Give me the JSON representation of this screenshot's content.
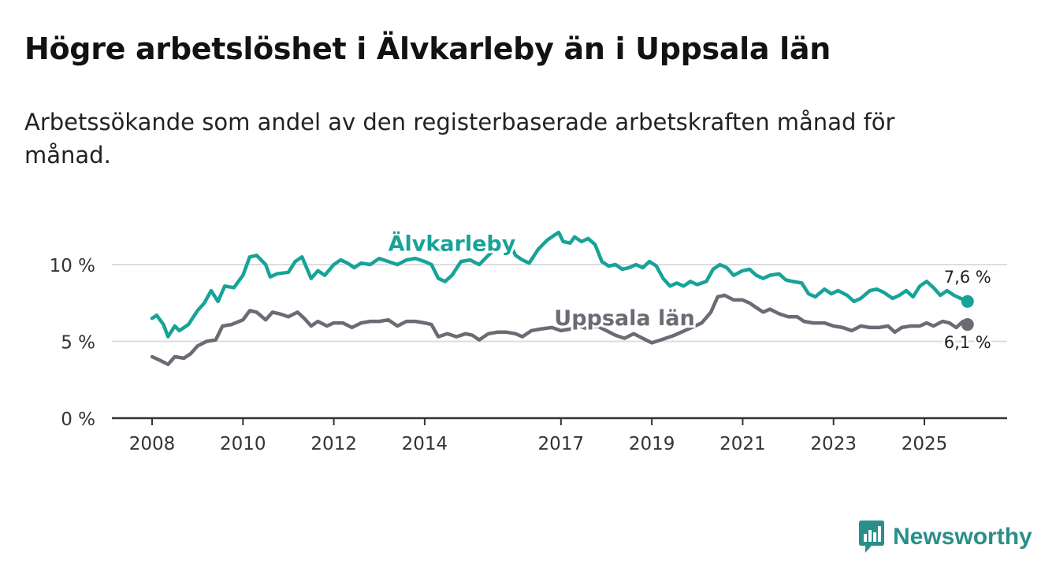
{
  "title": "Högre arbetslöshet i Älvkarleby än i Uppsala län",
  "subtitle": "Arbetssökande som andel av den registerbaserade arbetskraften månad för månad.",
  "brand": {
    "name": "Newsworthy",
    "icon": "bar-chart-logo-icon"
  },
  "colors": {
    "alvkarleby": "#17a398",
    "uppsala": "#6b6b74",
    "axis": "#333333",
    "grid": "#dddddd"
  },
  "chart_data": {
    "type": "line",
    "title": "Högre arbetslöshet i Älvkarleby än i Uppsala län",
    "xlabel": "",
    "ylabel": "",
    "xlim": [
      2008,
      2026.5
    ],
    "ylim": [
      0,
      10
    ],
    "y_ticks": [
      0,
      5,
      10
    ],
    "y_tick_labels": [
      "0 %",
      "5 %",
      "10 %"
    ],
    "x_ticks": [
      2008,
      2010,
      2012,
      2014,
      2017,
      2019,
      2021,
      2023,
      2025
    ],
    "x_tick_labels": [
      "2008",
      "2010",
      "2012",
      "2014",
      "2017",
      "2019",
      "2021",
      "2023",
      "2025"
    ],
    "grid": true,
    "series": [
      {
        "name": "Älvkarleby",
        "label": "Älvkarleby",
        "end_label": "7,6 %",
        "points": [
          [
            2008,
            6.5
          ],
          [
            2008.1,
            6.7
          ],
          [
            2008.25,
            6.1
          ],
          [
            2008.35,
            5.3
          ],
          [
            2008.5,
            6.0
          ],
          [
            2008.6,
            5.7
          ],
          [
            2008.8,
            6.1
          ],
          [
            2009,
            7.0
          ],
          [
            2009.15,
            7.5
          ],
          [
            2009.3,
            8.3
          ],
          [
            2009.45,
            7.6
          ],
          [
            2009.6,
            8.6
          ],
          [
            2009.8,
            8.5
          ],
          [
            2010,
            9.3
          ],
          [
            2010.15,
            10.5
          ],
          [
            2010.3,
            10.6
          ],
          [
            2010.5,
            10.0
          ],
          [
            2010.6,
            9.2
          ],
          [
            2010.75,
            9.4
          ],
          [
            2011,
            9.5
          ],
          [
            2011.15,
            10.2
          ],
          [
            2011.3,
            10.5
          ],
          [
            2011.4,
            9.8
          ],
          [
            2011.5,
            9.1
          ],
          [
            2011.65,
            9.6
          ],
          [
            2011.8,
            9.3
          ],
          [
            2012,
            10.0
          ],
          [
            2012.15,
            10.3
          ],
          [
            2012.3,
            10.1
          ],
          [
            2012.45,
            9.8
          ],
          [
            2012.6,
            10.1
          ],
          [
            2012.8,
            10.0
          ],
          [
            2013,
            10.4
          ],
          [
            2013.2,
            10.2
          ],
          [
            2013.4,
            10.0
          ],
          [
            2013.6,
            10.3
          ],
          [
            2013.8,
            10.4
          ],
          [
            2014,
            10.2
          ],
          [
            2014.15,
            10.0
          ],
          [
            2014.3,
            9.1
          ],
          [
            2014.45,
            8.9
          ],
          [
            2014.6,
            9.3
          ],
          [
            2014.8,
            10.2
          ],
          [
            2015,
            10.3
          ],
          [
            2015.2,
            10.0
          ],
          [
            2015.4,
            10.6
          ],
          [
            2015.55,
            11.0
          ],
          [
            2015.7,
            11.5
          ],
          [
            2015.9,
            11.2
          ],
          [
            2016,
            10.6
          ],
          [
            2016.15,
            10.3
          ],
          [
            2016.3,
            10.1
          ],
          [
            2016.5,
            11.0
          ],
          [
            2016.7,
            11.6
          ],
          [
            2016.85,
            11.9
          ],
          [
            2016.95,
            12.1
          ],
          [
            2017.05,
            11.5
          ],
          [
            2017.2,
            11.4
          ],
          [
            2017.3,
            11.8
          ],
          [
            2017.45,
            11.5
          ],
          [
            2017.6,
            11.7
          ],
          [
            2017.75,
            11.3
          ],
          [
            2017.9,
            10.2
          ],
          [
            2018.05,
            9.9
          ],
          [
            2018.2,
            10.0
          ],
          [
            2018.35,
            9.7
          ],
          [
            2018.5,
            9.8
          ],
          [
            2018.65,
            10.0
          ],
          [
            2018.8,
            9.8
          ],
          [
            2018.95,
            10.2
          ],
          [
            2019.1,
            9.9
          ],
          [
            2019.25,
            9.1
          ],
          [
            2019.4,
            8.6
          ],
          [
            2019.55,
            8.8
          ],
          [
            2019.7,
            8.6
          ],
          [
            2019.85,
            8.9
          ],
          [
            2020,
            8.7
          ],
          [
            2020.2,
            8.9
          ],
          [
            2020.35,
            9.7
          ],
          [
            2020.5,
            10.0
          ],
          [
            2020.65,
            9.8
          ],
          [
            2020.8,
            9.3
          ],
          [
            2021,
            9.6
          ],
          [
            2021.15,
            9.7
          ],
          [
            2021.3,
            9.3
          ],
          [
            2021.45,
            9.1
          ],
          [
            2021.6,
            9.3
          ],
          [
            2021.8,
            9.4
          ],
          [
            2021.95,
            9.0
          ],
          [
            2022.1,
            8.9
          ],
          [
            2022.3,
            8.8
          ],
          [
            2022.45,
            8.1
          ],
          [
            2022.6,
            7.9
          ],
          [
            2022.8,
            8.4
          ],
          [
            2022.95,
            8.1
          ],
          [
            2023.1,
            8.3
          ],
          [
            2023.3,
            8.0
          ],
          [
            2023.45,
            7.6
          ],
          [
            2023.6,
            7.8
          ],
          [
            2023.8,
            8.3
          ],
          [
            2023.95,
            8.4
          ],
          [
            2024.1,
            8.2
          ],
          [
            2024.3,
            7.8
          ],
          [
            2024.45,
            8.0
          ],
          [
            2024.6,
            8.3
          ],
          [
            2024.75,
            7.9
          ],
          [
            2024.9,
            8.6
          ],
          [
            2025.05,
            8.9
          ],
          [
            2025.2,
            8.5
          ],
          [
            2025.35,
            8.0
          ],
          [
            2025.5,
            8.3
          ],
          [
            2025.65,
            8.0
          ],
          [
            2025.8,
            7.8
          ],
          [
            2025.95,
            7.6
          ]
        ]
      },
      {
        "name": "Uppsala län",
        "label": "Uppsala län",
        "end_label": "6,1 %",
        "points": [
          [
            2008,
            4.0
          ],
          [
            2008.15,
            3.8
          ],
          [
            2008.35,
            3.5
          ],
          [
            2008.5,
            4.0
          ],
          [
            2008.7,
            3.9
          ],
          [
            2008.85,
            4.2
          ],
          [
            2009,
            4.7
          ],
          [
            2009.2,
            5.0
          ],
          [
            2009.4,
            5.1
          ],
          [
            2009.55,
            6.0
          ],
          [
            2009.75,
            6.1
          ],
          [
            2010,
            6.4
          ],
          [
            2010.15,
            7.0
          ],
          [
            2010.3,
            6.9
          ],
          [
            2010.5,
            6.4
          ],
          [
            2010.65,
            6.9
          ],
          [
            2010.8,
            6.8
          ],
          [
            2011,
            6.6
          ],
          [
            2011.2,
            6.9
          ],
          [
            2011.35,
            6.5
          ],
          [
            2011.5,
            6.0
          ],
          [
            2011.65,
            6.3
          ],
          [
            2011.85,
            6.0
          ],
          [
            2012,
            6.2
          ],
          [
            2012.2,
            6.2
          ],
          [
            2012.4,
            5.9
          ],
          [
            2012.6,
            6.2
          ],
          [
            2012.8,
            6.3
          ],
          [
            2013,
            6.3
          ],
          [
            2013.2,
            6.4
          ],
          [
            2013.4,
            6.0
          ],
          [
            2013.6,
            6.3
          ],
          [
            2013.8,
            6.3
          ],
          [
            2014,
            6.2
          ],
          [
            2014.15,
            6.1
          ],
          [
            2014.3,
            5.3
          ],
          [
            2014.5,
            5.5
          ],
          [
            2014.7,
            5.3
          ],
          [
            2014.9,
            5.5
          ],
          [
            2015.05,
            5.4
          ],
          [
            2015.2,
            5.1
          ],
          [
            2015.4,
            5.5
          ],
          [
            2015.6,
            5.6
          ],
          [
            2015.8,
            5.6
          ],
          [
            2016,
            5.5
          ],
          [
            2016.15,
            5.3
          ],
          [
            2016.35,
            5.7
          ],
          [
            2016.55,
            5.8
          ],
          [
            2016.8,
            5.9
          ],
          [
            2017,
            5.7
          ],
          [
            2017.2,
            5.8
          ],
          [
            2017.4,
            6.0
          ],
          [
            2017.6,
            5.8
          ],
          [
            2017.8,
            6.0
          ],
          [
            2018,
            5.7
          ],
          [
            2018.2,
            5.4
          ],
          [
            2018.4,
            5.2
          ],
          [
            2018.6,
            5.5
          ],
          [
            2018.8,
            5.2
          ],
          [
            2019,
            4.9
          ],
          [
            2019.2,
            5.1
          ],
          [
            2019.5,
            5.4
          ],
          [
            2019.8,
            5.8
          ],
          [
            2020.1,
            6.2
          ],
          [
            2020.3,
            6.9
          ],
          [
            2020.45,
            7.9
          ],
          [
            2020.6,
            8.0
          ],
          [
            2020.8,
            7.7
          ],
          [
            2021,
            7.7
          ],
          [
            2021.15,
            7.5
          ],
          [
            2021.3,
            7.2
          ],
          [
            2021.45,
            6.9
          ],
          [
            2021.6,
            7.1
          ],
          [
            2021.8,
            6.8
          ],
          [
            2022,
            6.6
          ],
          [
            2022.2,
            6.6
          ],
          [
            2022.35,
            6.3
          ],
          [
            2022.55,
            6.2
          ],
          [
            2022.8,
            6.2
          ],
          [
            2023,
            6.0
          ],
          [
            2023.2,
            5.9
          ],
          [
            2023.4,
            5.7
          ],
          [
            2023.6,
            6.0
          ],
          [
            2023.8,
            5.9
          ],
          [
            2024,
            5.9
          ],
          [
            2024.2,
            6.0
          ],
          [
            2024.35,
            5.6
          ],
          [
            2024.5,
            5.9
          ],
          [
            2024.7,
            6.0
          ],
          [
            2024.9,
            6.0
          ],
          [
            2025.05,
            6.2
          ],
          [
            2025.2,
            6.0
          ],
          [
            2025.4,
            6.3
          ],
          [
            2025.55,
            6.2
          ],
          [
            2025.7,
            5.9
          ],
          [
            2025.85,
            6.3
          ],
          [
            2025.95,
            6.1
          ]
        ]
      }
    ]
  }
}
